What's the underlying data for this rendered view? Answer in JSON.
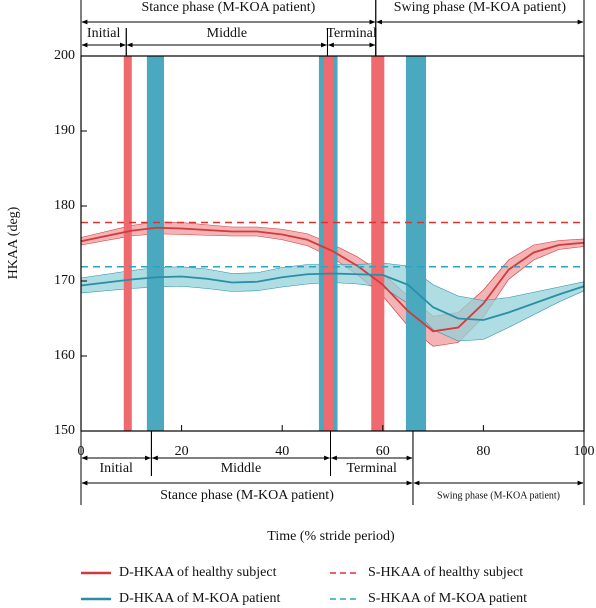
{
  "chart_data": {
    "type": "line",
    "xlabel": "Time (% stride period)",
    "ylabel": "HKAA (deg)",
    "xlim": [
      0,
      100
    ],
    "ylim": [
      150,
      200
    ],
    "xticks": [
      0,
      20,
      40,
      60,
      80,
      100
    ],
    "yticks": [
      150,
      160,
      170,
      180,
      190,
      200
    ],
    "x": [
      0,
      5,
      10,
      15,
      20,
      25,
      30,
      35,
      40,
      45,
      50,
      55,
      60,
      65,
      70,
      75,
      80,
      85,
      90,
      95,
      100
    ],
    "series": [
      {
        "name": "D-HKAA of healthy subject",
        "color": "#d23a3d",
        "band_color": "#f09a9b",
        "values": [
          175.3,
          176,
          176.7,
          177.1,
          177,
          176.8,
          176.6,
          176.6,
          176.2,
          175.5,
          174,
          172,
          169.5,
          166,
          163.3,
          163.8,
          167,
          171.5,
          173.8,
          174.8,
          175.1
        ],
        "errors": [
          0.5,
          0.6,
          0.7,
          0.8,
          0.8,
          0.7,
          0.6,
          0.6,
          0.7,
          0.8,
          0.9,
          1.2,
          1.5,
          2,
          2,
          2,
          1.8,
          1.3,
          1,
          0.6,
          0.5
        ]
      },
      {
        "name": "D-HKAA of M-KOA patient",
        "color": "#2a8ea6",
        "band_color": "#93d2da",
        "values": [
          169.4,
          169.8,
          170.2,
          170.5,
          170.6,
          170.3,
          169.8,
          169.9,
          170.5,
          170.9,
          171,
          170.9,
          170.8,
          169.5,
          166.5,
          165,
          164.8,
          165.8,
          167,
          168.2,
          169.3
        ],
        "errors": [
          1,
          1.1,
          1.2,
          1.3,
          1.3,
          1.3,
          1.2,
          1.2,
          1.3,
          1.3,
          1.2,
          1.3,
          1.6,
          2.5,
          3,
          3,
          2.6,
          2,
          1.5,
          1,
          0.6
        ]
      }
    ],
    "reference_lines": [
      {
        "name": "S-HKAA of healthy subject",
        "color": "#e0312f",
        "value": 177.8
      },
      {
        "name": "S-HKAA of M-KOA patient",
        "color": "#2aa5c0",
        "value": 171.9
      }
    ],
    "event_bands": [
      {
        "color": "#ee6a6e",
        "x": [
          8.5,
          10.1
        ]
      },
      {
        "color": "#4aa8bf",
        "x": [
          13.1,
          16.5
        ]
      },
      {
        "color": "#4aa8bf",
        "x": [
          47.3,
          51
        ]
      },
      {
        "color": "#ee6a6e",
        "x": [
          48.3,
          50.1
        ]
      },
      {
        "color": "#ee6a6e",
        "x": [
          57.7,
          60.3
        ]
      },
      {
        "color": "#4aa8bf",
        "x": [
          64.6,
          68.6
        ]
      }
    ],
    "phases_top_main": [
      {
        "label": "Stance phase (M-KOA patient)",
        "x": [
          0,
          58.6
        ]
      },
      {
        "label": "Swing phase (M-KOA patient)",
        "x": [
          58.6,
          100
        ]
      }
    ],
    "phases_top_sub": [
      {
        "label": "Initial",
        "x": [
          0,
          9
        ]
      },
      {
        "label": "Middle",
        "x": [
          9,
          49
        ]
      },
      {
        "label": "Terminal",
        "x": [
          49,
          58.6
        ]
      }
    ],
    "phases_bottom_sub": [
      {
        "label": "Initial",
        "x": [
          0,
          14
        ]
      },
      {
        "label": "Middle",
        "x": [
          14,
          49.6
        ]
      },
      {
        "label": "Terminal",
        "x": [
          49.6,
          66
        ]
      }
    ],
    "phases_bottom_main": [
      {
        "label": "Stance phase (M-KOA patient)",
        "x": [
          0,
          66
        ]
      },
      {
        "label": "Swing phase (M-KOA patient)",
        "x": [
          66,
          100
        ]
      }
    ]
  }
}
